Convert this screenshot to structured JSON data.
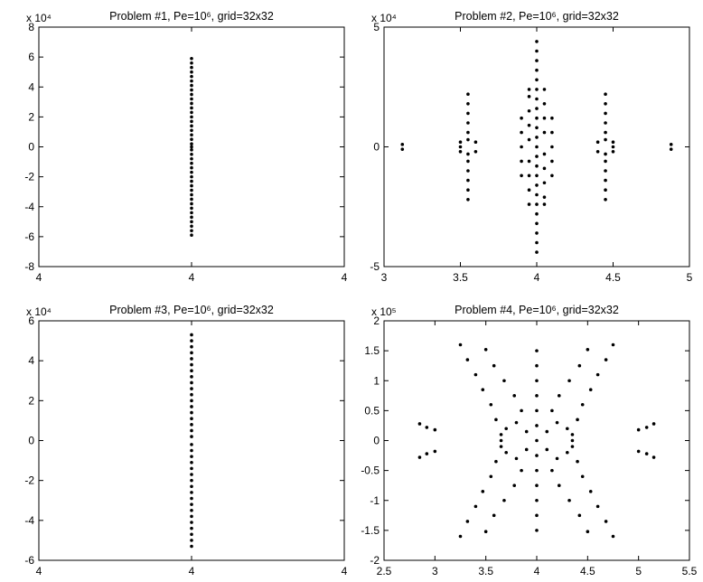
{
  "chart_data": [
    {
      "type": "scatter",
      "title": "Problem #1, Pe=10⁶, grid=32x32",
      "y_multiplier": "x 10⁴",
      "color": "#000000",
      "xlim": [
        3.9999,
        4.0001
      ],
      "ylim": [
        -8,
        8
      ],
      "xticks": [
        {
          "value": 3.9999,
          "label": "4"
        },
        4,
        {
          "value": 4.0001,
          "label": "4"
        }
      ],
      "yticks": [
        -8,
        -6,
        -4,
        -2,
        0,
        2,
        4,
        6,
        8
      ],
      "x": [
        4,
        4,
        4,
        4,
        4,
        4,
        4,
        4,
        4,
        4,
        4,
        4,
        4,
        4,
        4,
        4,
        4,
        4,
        4,
        4,
        4,
        4,
        4,
        4,
        4,
        4,
        4,
        4,
        4,
        4,
        4,
        4,
        4,
        4,
        4,
        4,
        4,
        4,
        4,
        4,
        4
      ],
      "y": [
        -5.9,
        -5.6,
        -5.3,
        -5,
        -4.7,
        -4.4,
        -4.1,
        -3.8,
        -3.5,
        -3.2,
        -2.9,
        -2.6,
        -2.3,
        -2,
        -1.7,
        -1.4,
        -1.1,
        -0.8,
        -0.5,
        -0.2,
        0,
        0.2,
        0.5,
        0.8,
        1.1,
        1.4,
        1.7,
        2,
        2.3,
        2.6,
        2.9,
        3.2,
        3.5,
        3.8,
        4.1,
        4.4,
        4.7,
        5,
        5.3,
        5.6,
        5.9
      ]
    },
    {
      "type": "scatter",
      "title": "Problem #2, Pe=10⁶, grid=32x32",
      "y_multiplier": "x 10⁴",
      "color": "#000000",
      "xlim": [
        3,
        5
      ],
      "ylim": [
        -5,
        5
      ],
      "xticks": [
        3,
        3.5,
        4,
        4.5,
        5
      ],
      "yticks": [
        -5,
        0,
        5
      ],
      "x": [
        3.12,
        3.12,
        4.88,
        4.88,
        3.5,
        3.5,
        3.5,
        3.6,
        3.6,
        4.4,
        4.4,
        4.5,
        4.5,
        4.5,
        3.55,
        3.55,
        3.55,
        3.55,
        3.55,
        3.55,
        3.55,
        3.55,
        3.55,
        3.55,
        3.55,
        3.55,
        4.45,
        4.45,
        4.45,
        4.45,
        4.45,
        4.45,
        4.45,
        4.45,
        4.45,
        4.45,
        4.45,
        4.45,
        3.9,
        3.9,
        3.9,
        3.9,
        3.9,
        4.1,
        4.1,
        4.1,
        4.1,
        4.1,
        3.95,
        3.95,
        3.95,
        3.95,
        3.95,
        3.95,
        3.95,
        3.95,
        3.95,
        4.05,
        4.05,
        4.05,
        4.05,
        4.05,
        4.05,
        4.05,
        4.05,
        4.05,
        4,
        4,
        4,
        4,
        4,
        4,
        4,
        4,
        4,
        4,
        4,
        4,
        4,
        4,
        4,
        4,
        4,
        4,
        4,
        4,
        4,
        4,
        4
      ],
      "y": [
        0.1,
        -0.1,
        0.1,
        -0.1,
        -0.2,
        0,
        0.2,
        -0.2,
        0.2,
        -0.2,
        0.2,
        -0.2,
        0,
        0.2,
        -2.2,
        -1.8,
        -1.4,
        -1,
        -0.6,
        -0.3,
        0.3,
        0.6,
        1,
        1.4,
        1.8,
        2.2,
        -2.2,
        -1.8,
        -1.4,
        -1,
        -0.6,
        -0.3,
        0.3,
        0.6,
        1,
        1.4,
        1.8,
        2.2,
        -1.2,
        -0.6,
        0,
        0.6,
        1.2,
        -1.2,
        -0.6,
        0,
        0.6,
        1.2,
        -2.4,
        -1.8,
        -1.2,
        -0.6,
        0.3,
        0.9,
        1.5,
        2.1,
        2.4,
        -2.4,
        -2.1,
        -1.5,
        -0.9,
        -0.3,
        0.6,
        1.2,
        1.8,
        2.4,
        -4.4,
        -4,
        -3.6,
        -3.2,
        -2.8,
        -2.4,
        -2,
        -1.6,
        -1.2,
        -0.8,
        -0.4,
        0,
        0.4,
        0.8,
        1.2,
        1.6,
        2,
        2.4,
        2.8,
        3.2,
        3.6,
        4,
        4.4
      ]
    },
    {
      "type": "scatter",
      "title": "Problem #3, Pe=10⁶, grid=32x32",
      "y_multiplier": "x 10⁴",
      "color": "#000000",
      "xlim": [
        3.9999,
        4.0001
      ],
      "ylim": [
        -6,
        6
      ],
      "xticks": [
        {
          "value": 3.9999,
          "label": "4"
        },
        4,
        {
          "value": 4.0001,
          "label": "4"
        }
      ],
      "yticks": [
        -6,
        -4,
        -2,
        0,
        2,
        4,
        6
      ],
      "x": [
        4,
        4,
        4,
        4,
        4,
        4,
        4,
        4,
        4,
        4,
        4,
        4,
        4,
        4,
        4,
        4,
        4,
        4,
        4,
        4,
        4,
        4,
        4,
        4,
        4,
        4,
        4,
        4,
        4,
        4,
        4,
        4,
        4,
        4,
        4,
        4
      ],
      "y": [
        -5.3,
        -5,
        -4.7,
        -4.4,
        -4.1,
        -3.8,
        -3.5,
        -3.2,
        -2.9,
        -2.6,
        -2.3,
        -2,
        -1.7,
        -1.4,
        -1.1,
        -0.8,
        -0.5,
        -0.2,
        0.2,
        0.5,
        0.8,
        1.1,
        1.4,
        1.7,
        2,
        2.3,
        2.6,
        2.9,
        3.2,
        3.5,
        3.8,
        4.1,
        4.4,
        4.7,
        5,
        5.3
      ]
    },
    {
      "type": "scatter",
      "title": "Problem #4, Pe=10⁶, grid=32x32",
      "y_multiplier": "x 10⁵",
      "color": "#000000",
      "xlim": [
        2.5,
        5.5
      ],
      "ylim": [
        -2,
        2
      ],
      "xticks": [
        2.5,
        3,
        3.5,
        4,
        4.5,
        5,
        5.5
      ],
      "yticks": [
        -2,
        -1.5,
        -1,
        -0.5,
        0,
        0.5,
        1,
        1.5,
        2
      ],
      "x": [
        2.85,
        2.92,
        3,
        3.25,
        3.32,
        3.4,
        3.47,
        3.55,
        3.6,
        3.5,
        3.58,
        3.68,
        3.78,
        3.85,
        3.65,
        3.7,
        3.8,
        3.9,
        5.15,
        5.08,
        5,
        4.75,
        4.68,
        4.6,
        4.53,
        4.45,
        4.4,
        4.5,
        4.42,
        4.32,
        4.22,
        4.15,
        4.35,
        4.3,
        4.2,
        4.1,
        2.85,
        2.92,
        3,
        3.25,
        3.32,
        3.4,
        3.47,
        3.55,
        3.6,
        3.5,
        3.58,
        3.68,
        3.78,
        3.85,
        3.65,
        3.7,
        3.8,
        3.9,
        5.15,
        5.08,
        5,
        4.75,
        4.68,
        4.6,
        4.53,
        4.45,
        4.4,
        4.5,
        4.42,
        4.32,
        4.22,
        4.15,
        4.35,
        4.3,
        4.2,
        4.1,
        4,
        4,
        4,
        4,
        4,
        4,
        4,
        4,
        4,
        4,
        4,
        4,
        4,
        3.65,
        4.35
      ],
      "y": [
        0.28,
        0.22,
        0.18,
        1.6,
        1.35,
        1.1,
        0.85,
        0.6,
        0.35,
        1.52,
        1.25,
        1,
        0.75,
        0.5,
        0.1,
        0.2,
        0.3,
        0.15,
        0.28,
        0.22,
        0.18,
        1.6,
        1.35,
        1.1,
        0.85,
        0.6,
        0.35,
        1.52,
        1.25,
        1,
        0.75,
        0.5,
        0.1,
        0.2,
        0.3,
        0.15,
        -0.28,
        -0.22,
        -0.18,
        -1.6,
        -1.35,
        -1.1,
        -0.85,
        -0.6,
        -0.35,
        -1.52,
        -1.25,
        -1,
        -0.75,
        -0.5,
        -0.1,
        -0.2,
        -0.3,
        -0.15,
        -0.28,
        -0.22,
        -0.18,
        -1.6,
        -1.35,
        -1.1,
        -0.85,
        -0.6,
        -0.35,
        -1.52,
        -1.25,
        -1,
        -0.75,
        -0.5,
        -0.1,
        -0.2,
        -0.3,
        -0.15,
        -1.5,
        -1.25,
        -1,
        -0.75,
        -0.5,
        -0.25,
        0,
        0.25,
        0.5,
        0.75,
        1,
        1.25,
        1.5,
        0,
        0
      ]
    }
  ]
}
